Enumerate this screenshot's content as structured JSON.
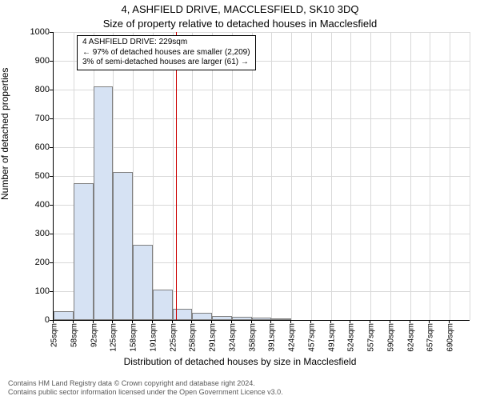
{
  "header": {
    "address": "4, ASHFIELD DRIVE, MACCLESFIELD, SK10 3DQ",
    "subtitle": "Size of property relative to detached houses in Macclesfield"
  },
  "chart": {
    "type": "histogram",
    "xlabel": "Distribution of detached houses by size in Macclesfield",
    "ylabel": "Number of detached properties",
    "background_color": "#ffffff",
    "grid_color": "#d9d9d9",
    "axis_color": "#000000",
    "bar_fill": "#d6e2f3",
    "bar_border": "#808080",
    "reference_line_color": "#cc0000",
    "reference_value": 229,
    "x_start": 25,
    "x_step": 33,
    "x_categories": [
      "25sqm",
      "58sqm",
      "92sqm",
      "125sqm",
      "158sqm",
      "191sqm",
      "225sqm",
      "258sqm",
      "291sqm",
      "324sqm",
      "358sqm",
      "391sqm",
      "424sqm",
      "457sqm",
      "491sqm",
      "524sqm",
      "557sqm",
      "590sqm",
      "624sqm",
      "657sqm",
      "690sqm"
    ],
    "values": [
      30,
      475,
      810,
      515,
      260,
      105,
      40,
      25,
      15,
      10,
      8,
      5,
      0,
      0,
      0,
      0,
      0,
      0,
      0,
      0,
      0
    ],
    "ylim": [
      0,
      1000
    ],
    "ytick_step": 100,
    "xlabel_fontsize": 12,
    "ylabel_fontsize": 12,
    "tick_fontsize": 10
  },
  "annotation": {
    "line1": "4 ASHFIELD DRIVE: 229sqm",
    "line2": "← 97% of detached houses are smaller (2,209)",
    "line3": "3% of semi-detached houses are larger (61) →"
  },
  "footer": {
    "line1": "Contains HM Land Registry data © Crown copyright and database right 2024.",
    "line2": "Contains public sector information licensed under the Open Government Licence v3.0."
  },
  "colors": {
    "text": "#000000",
    "footer_text": "#595959"
  }
}
